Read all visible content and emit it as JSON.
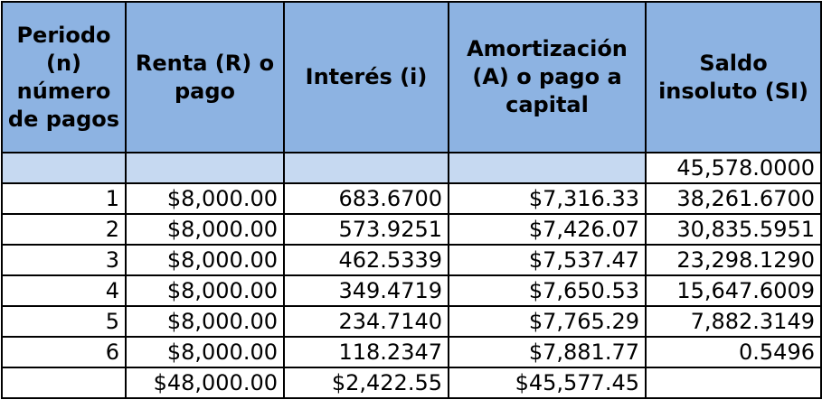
{
  "table": {
    "headers": [
      "Periodo (n) número de pagos",
      "Renta (R) o pago",
      "Interés (i)",
      "Amortización (A) o pago a capital",
      "Saldo insoluto (SI)"
    ],
    "initial_row": {
      "saldo": "45,578.0000"
    },
    "rows": [
      {
        "periodo": "1",
        "renta": "$8,000.00",
        "interes": "683.6700",
        "amortizacion": "$7,316.33",
        "saldo": "38,261.6700"
      },
      {
        "periodo": "2",
        "renta": "$8,000.00",
        "interes": "573.9251",
        "amortizacion": "$7,426.07",
        "saldo": "30,835.5951"
      },
      {
        "periodo": "3",
        "renta": "$8,000.00",
        "interes": "462.5339",
        "amortizacion": "$7,537.47",
        "saldo": "23,298.1290"
      },
      {
        "periodo": "4",
        "renta": "$8,000.00",
        "interes": "349.4719",
        "amortizacion": "$7,650.53",
        "saldo": "15,647.6009"
      },
      {
        "periodo": "5",
        "renta": "$8,000.00",
        "interes": "234.7140",
        "amortizacion": "$7,765.29",
        "saldo": "7,882.3149"
      },
      {
        "periodo": "6",
        "renta": "$8,000.00",
        "interes": "118.2347",
        "amortizacion": "$7,881.77",
        "saldo": "0.5496"
      }
    ],
    "totals": {
      "renta": "$48,000.00",
      "interes": "$2,422.55",
      "amortizacion": "$45,577.45"
    }
  },
  "colors": {
    "header_bg": "#8db3e2",
    "initial_row_bg": "#c6d9f1",
    "border": "#000000"
  }
}
